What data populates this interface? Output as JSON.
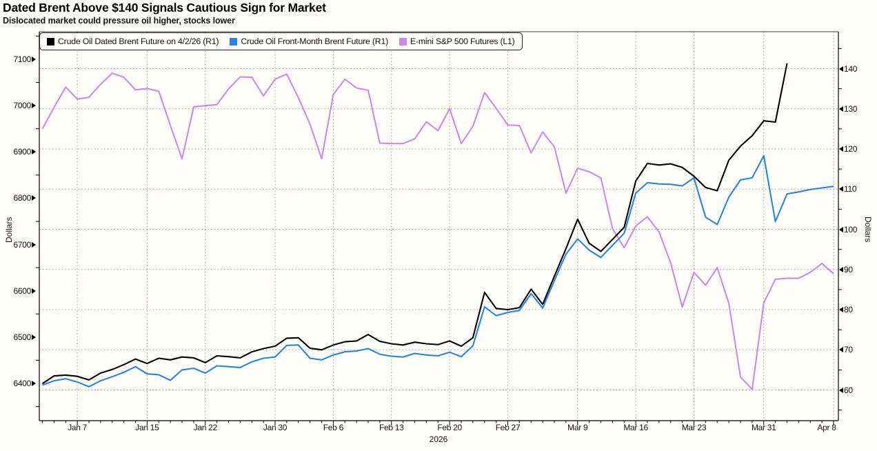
{
  "header": {
    "title": "Dated Brent Above $140 Signals Cautious Sign for Market",
    "subtitle": "Dislocated market could pressure oil higher, stocks lower"
  },
  "legend": {
    "position": "top-left",
    "items": [
      {
        "label": "Crude Oil Dated Brent Future on 4/2/26 (R1)",
        "color": "#000000"
      },
      {
        "label": "Crude Oil Front-Month Brent Future (R1)",
        "color": "#2484e8"
      },
      {
        "label": "E-mini S&P 500 Futures (L1)",
        "color": "#ca8be8"
      }
    ]
  },
  "axes": {
    "left": {
      "title": "Dollars",
      "ticks": [
        6400,
        6500,
        6600,
        6700,
        6800,
        6900,
        7000,
        7100
      ],
      "minor_step": 50
    },
    "right": {
      "title": "Dollars",
      "ticks": [
        60,
        70,
        80,
        90,
        100,
        110,
        120,
        130,
        140
      ],
      "minor_step": 5
    },
    "x": {
      "tick_labels": [
        "Jan 7",
        "Jan 15",
        "Jan 22",
        "Jan 30",
        "Feb 6",
        "Feb 13",
        "Feb 20",
        "Feb 27",
        "Mar 9",
        "Mar 16",
        "Mar 23",
        "Mar 31",
        "Apr 8"
      ],
      "tick_indices": [
        3,
        9,
        14,
        20,
        25,
        30,
        35,
        40,
        46,
        51,
        56,
        62,
        68
      ],
      "year_label": "2026"
    }
  },
  "chart_data": {
    "type": "line",
    "title": "Dated Brent Above $140 Signals Cautious Sign for Market",
    "subtitle": "Dislocated market could pressure oil higher, stocks lower",
    "xlabel": "2026",
    "ylabel_left": "Dollars",
    "ylabel_right": "Dollars",
    "grid": true,
    "legend_position": "top-left",
    "ylim_left": [
      6327,
      7137
    ],
    "ylim_right": [
      44,
      149
    ],
    "x": [
      "Jan 2",
      "Jan 5",
      "Jan 6",
      "Jan 7",
      "Jan 8",
      "Jan 9",
      "Jan 12",
      "Jan 13",
      "Jan 14",
      "Jan 15",
      "Jan 16",
      "Jan 19",
      "Jan 20",
      "Jan 21",
      "Jan 22",
      "Jan 23",
      "Jan 26",
      "Jan 27",
      "Jan 28",
      "Jan 29",
      "Jan 30",
      "Feb 2",
      "Feb 3",
      "Feb 4",
      "Feb 5",
      "Feb 6",
      "Feb 9",
      "Feb 10",
      "Feb 11",
      "Feb 12",
      "Feb 13",
      "Feb 16",
      "Feb 17",
      "Feb 18",
      "Feb 19",
      "Feb 20",
      "Feb 23",
      "Feb 24",
      "Feb 25",
      "Feb 26",
      "Feb 27",
      "Mar 2",
      "Mar 3",
      "Mar 4",
      "Mar 5",
      "Mar 6",
      "Mar 9",
      "Mar 10",
      "Mar 11",
      "Mar 12",
      "Mar 13",
      "Mar 16",
      "Mar 17",
      "Mar 18",
      "Mar 19",
      "Mar 20",
      "Mar 23",
      "Mar 24",
      "Mar 25",
      "Mar 26",
      "Mar 27",
      "Mar 30",
      "Mar 31",
      "Apr 1",
      "Apr 2",
      "Apr 3",
      "Apr 6",
      "Apr 7",
      "Apr 8"
    ],
    "series": [
      {
        "name": "E-mini S&P 500 Futures (L1)",
        "axis": "L1",
        "color": "#ca8be8",
        "values": [
          6950,
          6996,
          7040,
          7014,
          7018,
          7046,
          7070,
          7061,
          7034,
          7037,
          7031,
          6957,
          6885,
          6997,
          7000,
          7002,
          7036,
          7062,
          7061,
          7021,
          7057,
          7068,
          7017,
          6960,
          6885,
          7024,
          7057,
          7038,
          7033,
          6919,
          6918,
          6918,
          6928,
          6965,
          6946,
          6993,
          6918,
          6955,
          7028,
          6994,
          6958,
          6957,
          6898,
          6943,
          6911,
          6811,
          6865,
          6857,
          6844,
          6734,
          6693,
          6740,
          6760,
          6727,
          6660,
          6565,
          6640,
          6612,
          6650,
          6573,
          6414,
          6387,
          6574,
          6625,
          6627,
          6627,
          6640,
          6659,
          6637
        ]
      },
      {
        "name": "Crude Oil Front-Month Brent Future (R1)",
        "axis": "R1",
        "color": "#2484e8",
        "values": [
          61.2,
          62.3,
          62.8,
          62.0,
          60.8,
          62.3,
          63.3,
          64.4,
          65.8,
          64.0,
          63.8,
          62.4,
          65.0,
          65.4,
          64.2,
          66.0,
          65.8,
          65.6,
          67.0,
          67.9,
          68.2,
          71.1,
          71.2,
          67.9,
          67.5,
          68.7,
          69.5,
          69.7,
          70.3,
          68.9,
          68.4,
          68.2,
          69.1,
          68.7,
          68.5,
          69.4,
          68.3,
          71.0,
          80.7,
          78.5,
          79.3,
          79.8,
          84.0,
          80.4,
          87.2,
          93.8,
          97.6,
          94.8,
          93.0,
          96.0,
          99.0,
          109.0,
          111.6,
          111.3,
          111.2,
          110.8,
          112.8,
          103.0,
          101.2,
          108.0,
          112.3,
          112.8,
          118.3,
          101.9,
          108.8,
          109.3,
          109.9,
          110.3,
          110.7
        ]
      },
      {
        "name": "Crude Oil Dated Brent Future on 4/2/26 (R1)",
        "axis": "R1",
        "color": "#000000",
        "values": [
          61.6,
          63.5,
          63.7,
          63.4,
          62.5,
          64.2,
          65.1,
          66.3,
          67.7,
          66.6,
          67.9,
          67.5,
          68.2,
          68.0,
          66.8,
          68.5,
          68.3,
          68.0,
          69.5,
          70.3,
          70.9,
          72.9,
          73.0,
          70.4,
          70.0,
          71.2,
          72.0,
          72.2,
          73.8,
          72.1,
          71.5,
          71.2,
          71.9,
          71.5,
          71.3,
          72.2,
          70.9,
          73.0,
          84.3,
          80.3,
          80.0,
          80.5,
          85.1,
          81.3,
          88.3,
          95.2,
          102.5,
          96.5,
          94.5,
          97.5,
          100.5,
          112.0,
          116.4,
          116.0,
          116.3,
          115.4,
          113.2,
          110.4,
          109.6,
          117.2,
          120.7,
          123.3,
          127.0,
          126.7,
          141.3,
          null,
          null,
          null,
          null
        ]
      }
    ]
  }
}
